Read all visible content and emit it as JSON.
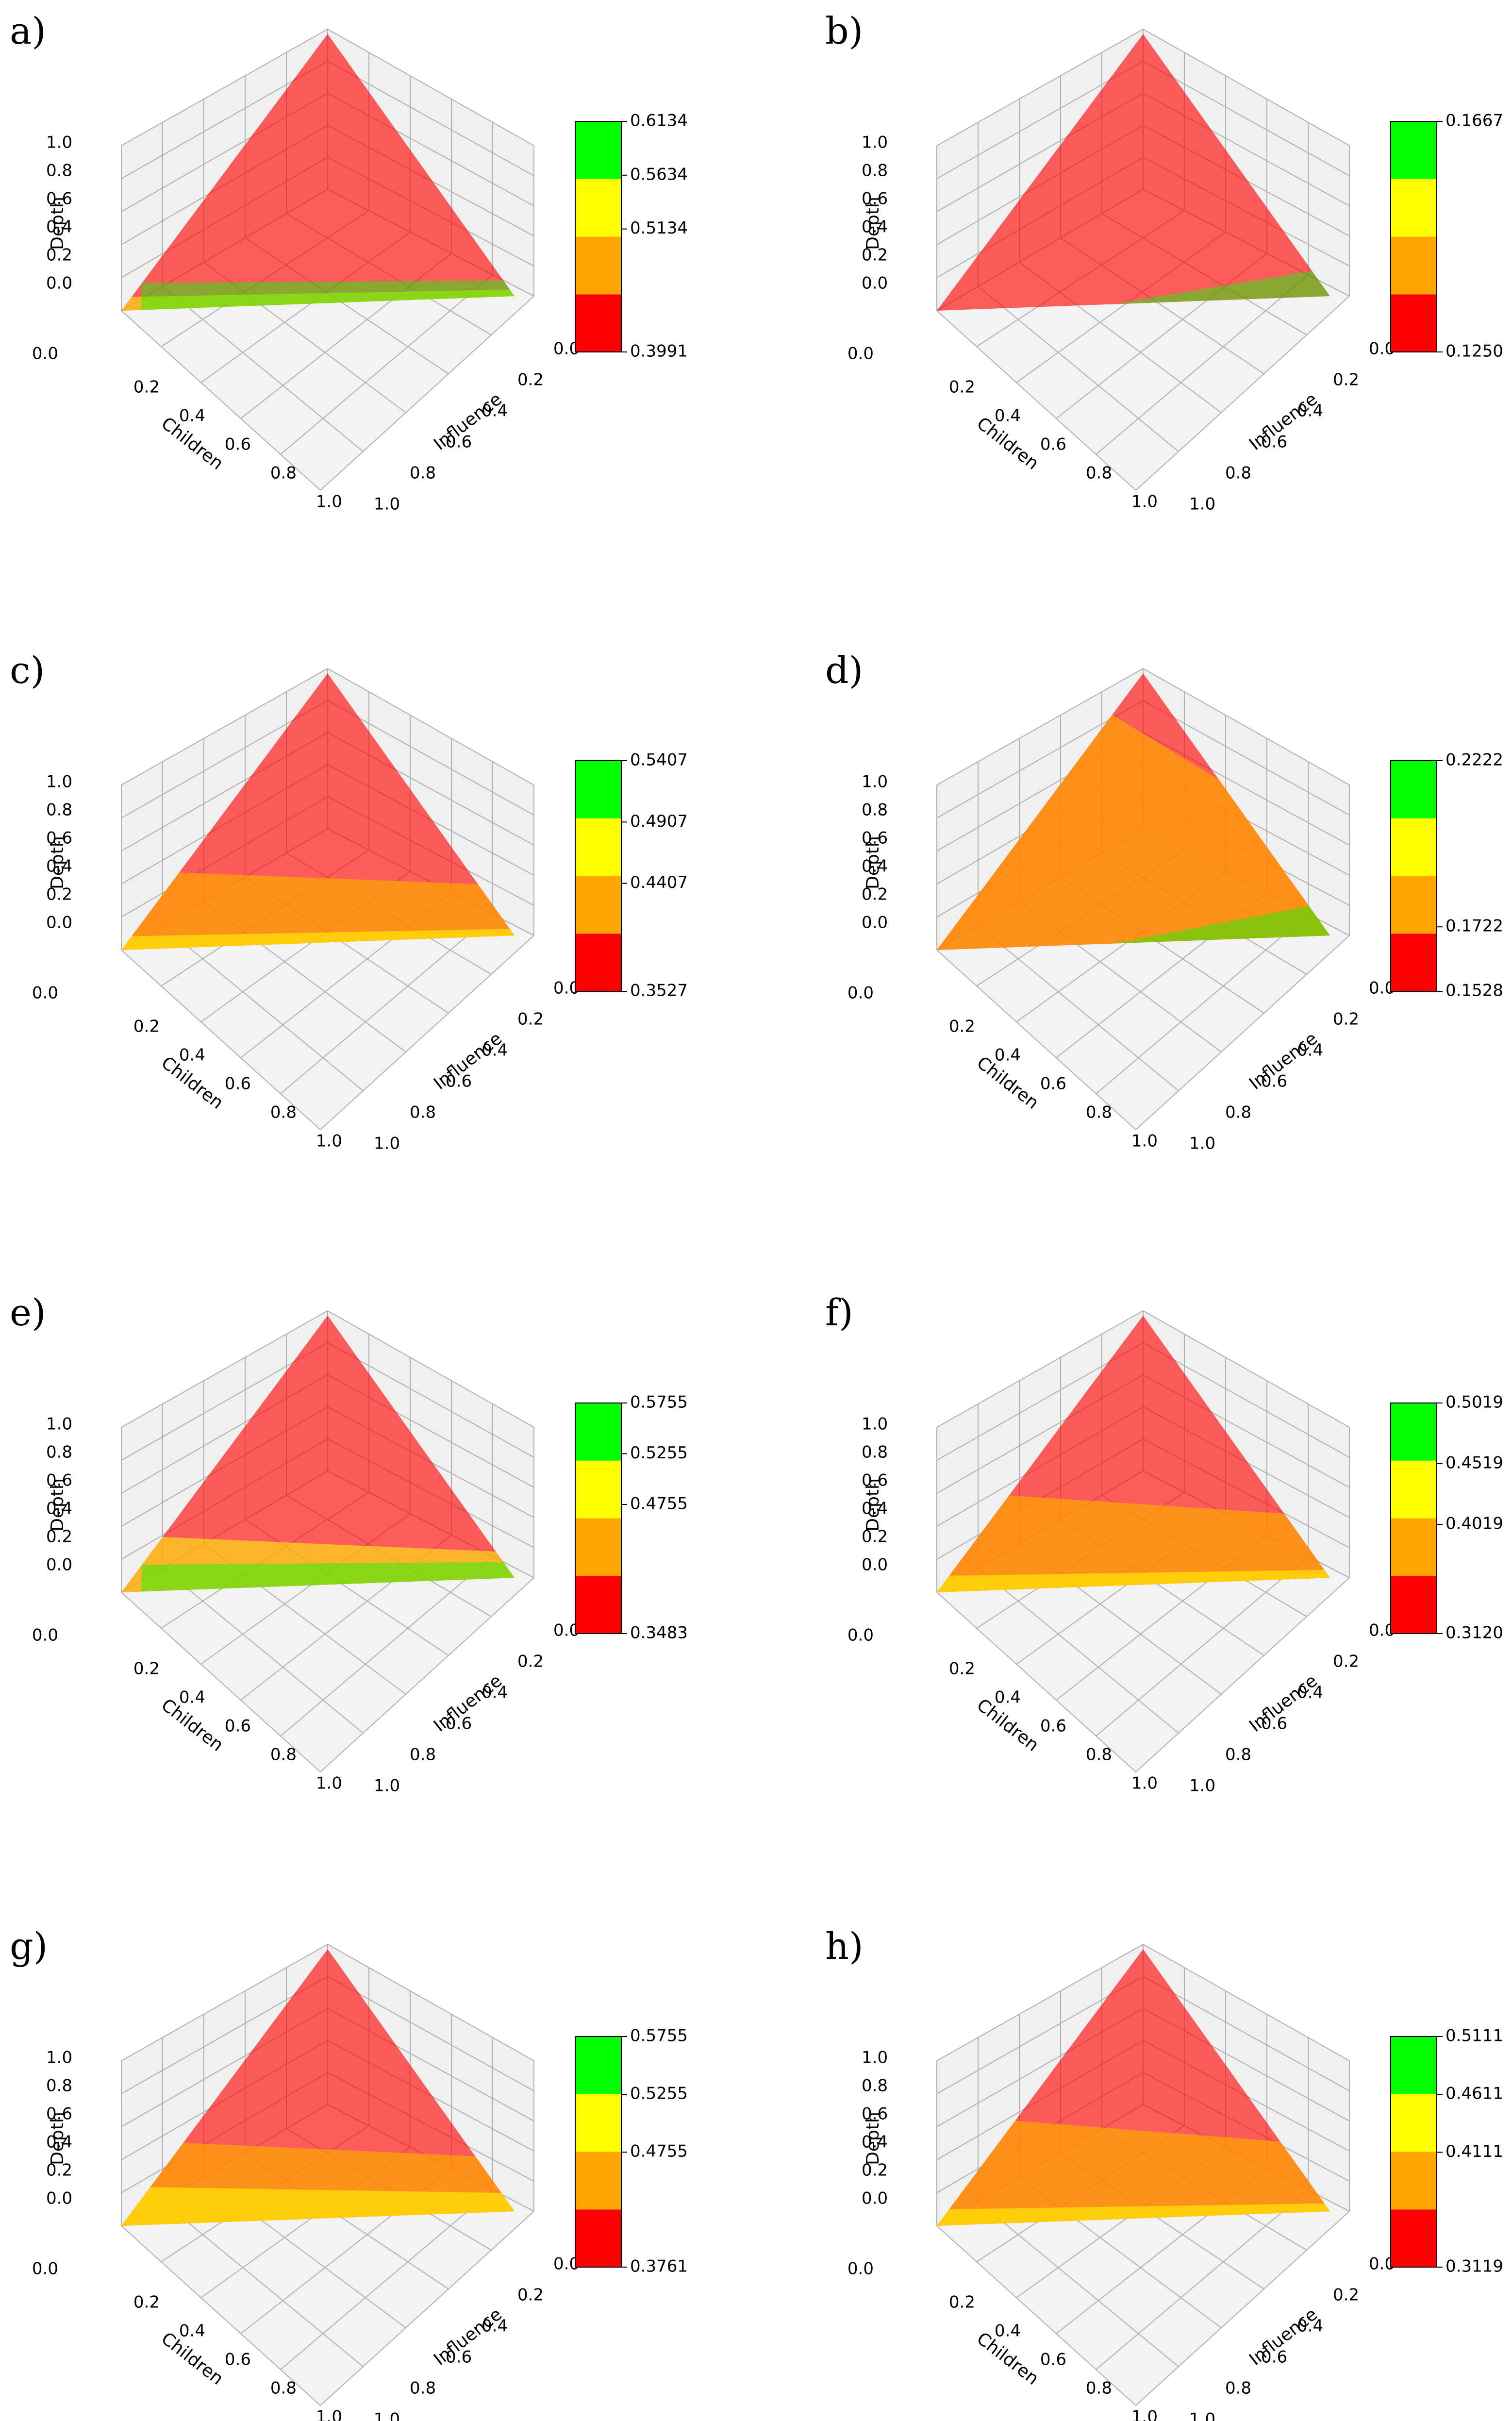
{
  "chart_data": [
    {
      "label": "a)",
      "type": "3d-surface",
      "axes": {
        "x": "Influence",
        "y": "Children",
        "z": "Depth"
      },
      "axis_ticks": [
        "0.0",
        "0.2",
        "0.4",
        "0.6",
        "0.8",
        "1.0"
      ],
      "colorbar": {
        "min": 0.3991,
        "max": 0.6134,
        "ticks": [
          "0.6134",
          "0.5634",
          "0.5134",
          "0.3991"
        ]
      },
      "regions": {
        "green": 0.1,
        "yellow": 0.05
      }
    },
    {
      "label": "b)",
      "type": "3d-surface",
      "axes": {
        "x": "Influence",
        "y": "Children",
        "z": "Depth"
      },
      "axis_ticks": [
        "0.0",
        "0.2",
        "0.4",
        "0.6",
        "0.8",
        "1.0"
      ],
      "colorbar": {
        "min": 0.125,
        "max": 0.1667,
        "ticks": [
          "0.1667",
          "0.1250"
        ]
      },
      "regions": {
        "green": 0.06,
        "yellow": 0
      }
    },
    {
      "label": "c)",
      "type": "3d-surface",
      "axes": {
        "x": "Influence",
        "y": "Children",
        "z": "Depth"
      },
      "axis_ticks": [
        "0.0",
        "0.2",
        "0.4",
        "0.6",
        "0.8",
        "1.0"
      ],
      "colorbar": {
        "min": 0.3527,
        "max": 0.5407,
        "ticks": [
          "0.5407",
          "0.4907",
          "0.4407",
          "0.3527"
        ]
      },
      "regions": {
        "orange": 0.28,
        "yellow": 0.05
      }
    },
    {
      "label": "d)",
      "type": "3d-surface",
      "axes": {
        "x": "Influence",
        "y": "Children",
        "z": "Depth"
      },
      "axis_ticks": [
        "0.0",
        "0.2",
        "0.4",
        "0.6",
        "0.8",
        "1.0"
      ],
      "colorbar": {
        "min": 0.1528,
        "max": 0.2222,
        "ticks": [
          "0.2222",
          "0.1722",
          "0.1528"
        ]
      },
      "regions": {
        "orange": 0.85,
        "green": 0.07
      }
    },
    {
      "label": "e)",
      "type": "3d-surface",
      "axes": {
        "x": "Influence",
        "y": "Children",
        "z": "Depth"
      },
      "axis_ticks": [
        "0.0",
        "0.2",
        "0.4",
        "0.6",
        "0.8",
        "1.0"
      ],
      "colorbar": {
        "min": 0.3483,
        "max": 0.5755,
        "ticks": [
          "0.5755",
          "0.5255",
          "0.4755",
          "0.3483"
        ]
      },
      "regions": {
        "yellow": 0.2,
        "green": 0.1
      }
    },
    {
      "label": "f)",
      "type": "3d-surface",
      "axes": {
        "x": "Influence",
        "y": "Children",
        "z": "Depth"
      },
      "axis_ticks": [
        "0.0",
        "0.2",
        "0.4",
        "0.6",
        "0.8",
        "1.0"
      ],
      "colorbar": {
        "min": 0.312,
        "max": 0.5019,
        "ticks": [
          "0.5019",
          "0.4519",
          "0.4019",
          "0.3120"
        ]
      },
      "regions": {
        "orange": 0.35,
        "yellow": 0.06
      }
    },
    {
      "label": "g)",
      "type": "3d-surface",
      "axes": {
        "x": "Influence",
        "y": "Children",
        "z": "Depth"
      },
      "axis_ticks": [
        "0.0",
        "0.2",
        "0.4",
        "0.6",
        "0.8",
        "1.0"
      ],
      "colorbar": {
        "min": 0.3761,
        "max": 0.5755,
        "ticks": [
          "0.5755",
          "0.5255",
          "0.4755",
          "0.3761"
        ]
      },
      "regions": {
        "orange": 0.3,
        "yellow": 0.14
      }
    },
    {
      "label": "h)",
      "type": "3d-surface",
      "axes": {
        "x": "Influence",
        "y": "Children",
        "z": "Depth"
      },
      "axis_ticks": [
        "0.0",
        "0.2",
        "0.4",
        "0.6",
        "0.8",
        "1.0"
      ],
      "colorbar": {
        "min": 0.3119,
        "max": 0.5111,
        "ticks": [
          "0.5111",
          "0.4611",
          "0.4111",
          "0.3119"
        ]
      },
      "regions": {
        "orange": 0.38,
        "yellow": 0.06
      }
    }
  ],
  "colors": {
    "red": "#ff0000",
    "orange": "#ffa500",
    "yellow": "#ffff00",
    "green": "#00ff00",
    "pane": "#ebebeb",
    "grid": "#b0b0b0"
  }
}
